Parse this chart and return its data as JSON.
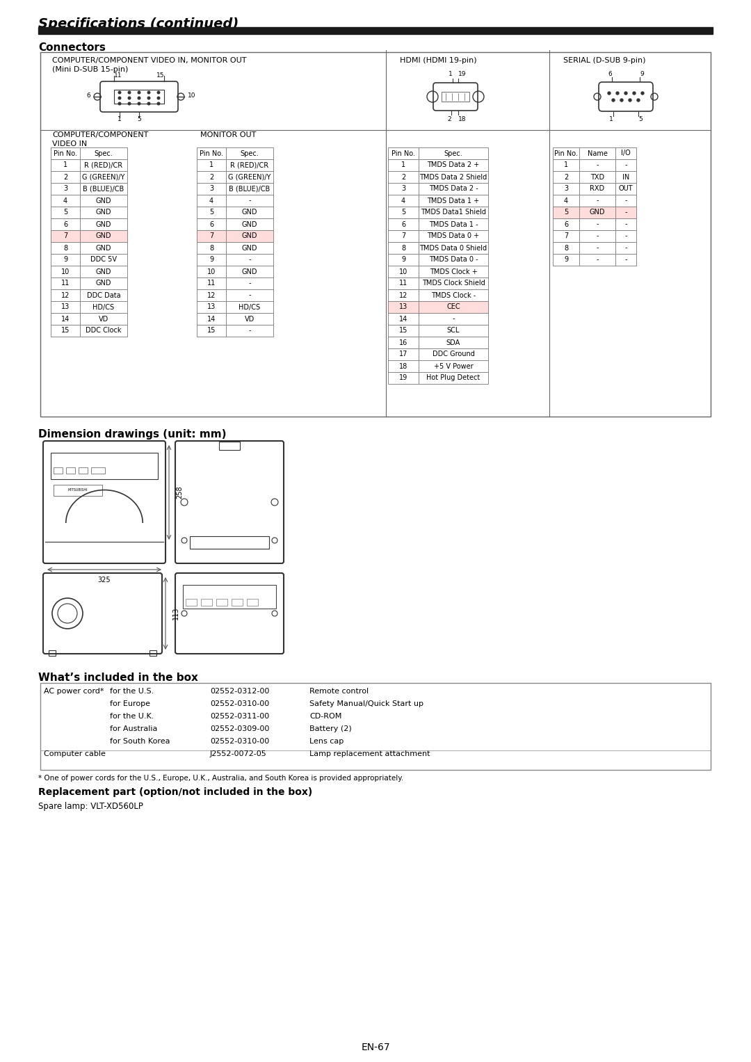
{
  "title": "Specifications (continued)",
  "section1": "Connectors",
  "section2": "Dimension drawings (unit: mm)",
  "section3": "What’s included in the box",
  "section4": "Replacement part (option/not included in the box)",
  "spare_lamp": "Spare lamp: VLT-XD560LP",
  "page_num": "EN-67",
  "video_in_header1": "COMPUTER/COMPONENT",
  "video_in_header2": "VIDEO IN",
  "monitor_out_header": "MONITOR OUT",
  "video_in_pins": [
    [
      "Pin No.",
      "Spec."
    ],
    [
      "1",
      "R (RED)/CR"
    ],
    [
      "2",
      "G (GREEN)/Y"
    ],
    [
      "3",
      "B (BLUE)/CB"
    ],
    [
      "4",
      "GND"
    ],
    [
      "5",
      "GND"
    ],
    [
      "6",
      "GND"
    ],
    [
      "7",
      "GND"
    ],
    [
      "8",
      "GND"
    ],
    [
      "9",
      "DDC 5V"
    ],
    [
      "10",
      "GND"
    ],
    [
      "11",
      "GND"
    ],
    [
      "12",
      "DDC Data"
    ],
    [
      "13",
      "HD/CS"
    ],
    [
      "14",
      "VD"
    ],
    [
      "15",
      "DDC Clock"
    ]
  ],
  "monitor_out_pins": [
    [
      "Pin No.",
      "Spec."
    ],
    [
      "1",
      "R (RED)/CR"
    ],
    [
      "2",
      "G (GREEN)/Y"
    ],
    [
      "3",
      "B (BLUE)/CB"
    ],
    [
      "4",
      "-"
    ],
    [
      "5",
      "GND"
    ],
    [
      "6",
      "GND"
    ],
    [
      "7",
      "GND"
    ],
    [
      "8",
      "GND"
    ],
    [
      "9",
      "-"
    ],
    [
      "10",
      "GND"
    ],
    [
      "11",
      "-"
    ],
    [
      "12",
      "-"
    ],
    [
      "13",
      "HD/CS"
    ],
    [
      "14",
      "VD"
    ],
    [
      "15",
      "-"
    ]
  ],
  "hdmi_pins": [
    [
      "Pin No.",
      "Spec."
    ],
    [
      "1",
      "TMDS Data 2 +"
    ],
    [
      "2",
      "TMDS Data 2 Shield"
    ],
    [
      "3",
      "TMDS Data 2 -"
    ],
    [
      "4",
      "TMDS Data 1 +"
    ],
    [
      "5",
      "TMDS Data1 Shield"
    ],
    [
      "6",
      "TMDS Data 1 -"
    ],
    [
      "7",
      "TMDS Data 0 +"
    ],
    [
      "8",
      "TMDS Data 0 Shield"
    ],
    [
      "9",
      "TMDS Data 0 -"
    ],
    [
      "10",
      "TMDS Clock +"
    ],
    [
      "11",
      "TMDS Clock Shield"
    ],
    [
      "12",
      "TMDS Clock -"
    ],
    [
      "13",
      "CEC"
    ],
    [
      "14",
      "-"
    ],
    [
      "15",
      "SCL"
    ],
    [
      "16",
      "SDA"
    ],
    [
      "17",
      "DDC Ground"
    ],
    [
      "18",
      "+5 V Power"
    ],
    [
      "19",
      "Hot Plug Detect"
    ]
  ],
  "serial_pins": [
    [
      "Pin No.",
      "Name",
      "I/O"
    ],
    [
      "1",
      "-",
      "-"
    ],
    [
      "2",
      "TXD",
      "IN"
    ],
    [
      "3",
      "RXD",
      "OUT"
    ],
    [
      "4",
      "-",
      "-"
    ],
    [
      "5",
      "GND",
      "-"
    ],
    [
      "6",
      "-",
      "-"
    ],
    [
      "7",
      "-",
      "-"
    ],
    [
      "8",
      "-",
      "-"
    ],
    [
      "9",
      "-",
      "-"
    ]
  ],
  "box_items": [
    [
      "AC power cord*",
      "for the U.S.",
      "02552-0312-00",
      "Remote control"
    ],
    [
      "",
      "for Europe",
      "02552-0310-00",
      "Safety Manual/Quick Start up"
    ],
    [
      "",
      "for the U.K.",
      "02552-0311-00",
      "CD-ROM"
    ],
    [
      "",
      "for Australia",
      "02552-0309-00",
      "Battery (2)"
    ],
    [
      "",
      "for South Korea",
      "02552-0310-00",
      "Lens cap"
    ],
    [
      "Computer cable",
      "",
      "J2552-0072-05",
      "Lamp replacement attachment"
    ]
  ],
  "footnote": "* One of power cords for the U.S., Europe, U.K., Australia, and South Korea is provided appropriately.",
  "bg_color": "#ffffff",
  "header_bar_color": "#1a1a1a",
  "red_row_color": "#ffdddd"
}
